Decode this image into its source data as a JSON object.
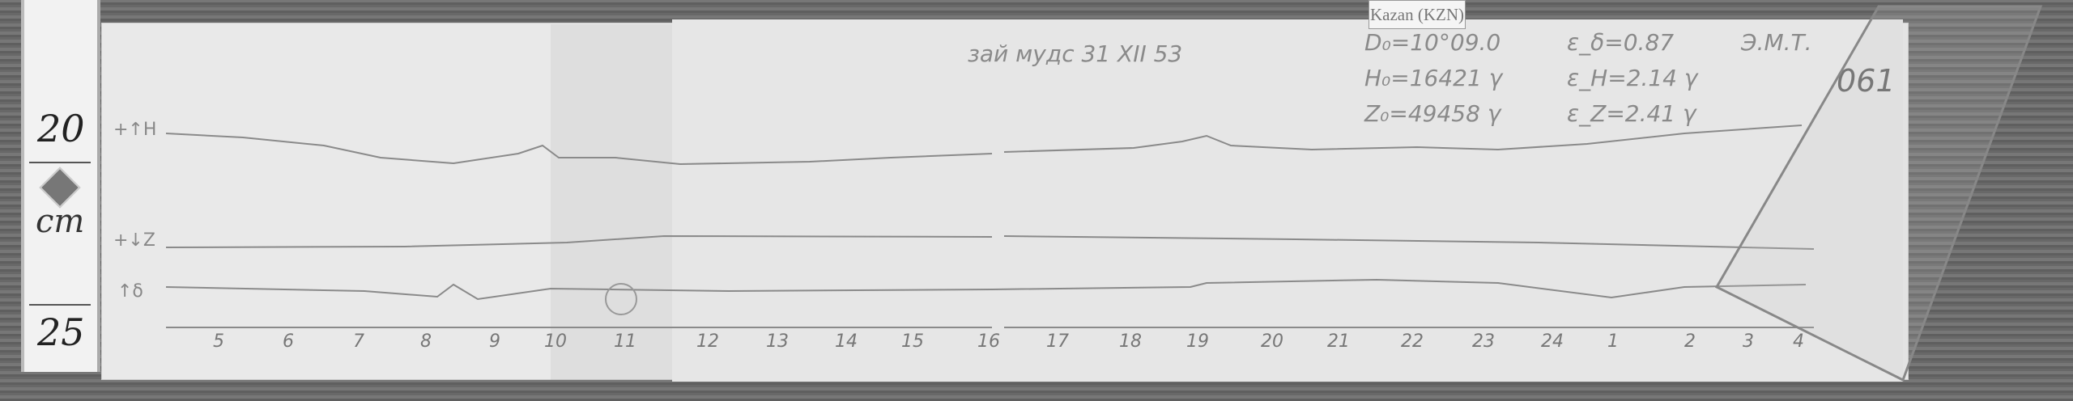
{
  "ruler": {
    "mark_top": "20",
    "unit": "cm",
    "mark_bottom": "25"
  },
  "station_label": "Kazan (KZN)",
  "header_note": "зай мудс 31 XII 53",
  "constants": {
    "d0": "D₀=10°09.0",
    "h0": "H₀=16421 γ",
    "z0": "Z₀=49458 γ",
    "ed": "ε_δ=0.87",
    "eh": "ε_H=2.14 γ",
    "ez": "ε_Z=2.41 γ"
  },
  "initials": "Э.М.Т.",
  "sheet_number": "061",
  "trace_labels": {
    "h": "+↑H",
    "z": "+↓Z",
    "d": "↑δ"
  },
  "hours": [
    "5",
    "6",
    "7",
    "8",
    "9",
    "10",
    "11",
    "12",
    "13",
    "14",
    "15",
    "16",
    "17",
    "18",
    "19",
    "20",
    "21",
    "22",
    "23",
    "24",
    "1",
    "2",
    "3",
    "4"
  ]
}
